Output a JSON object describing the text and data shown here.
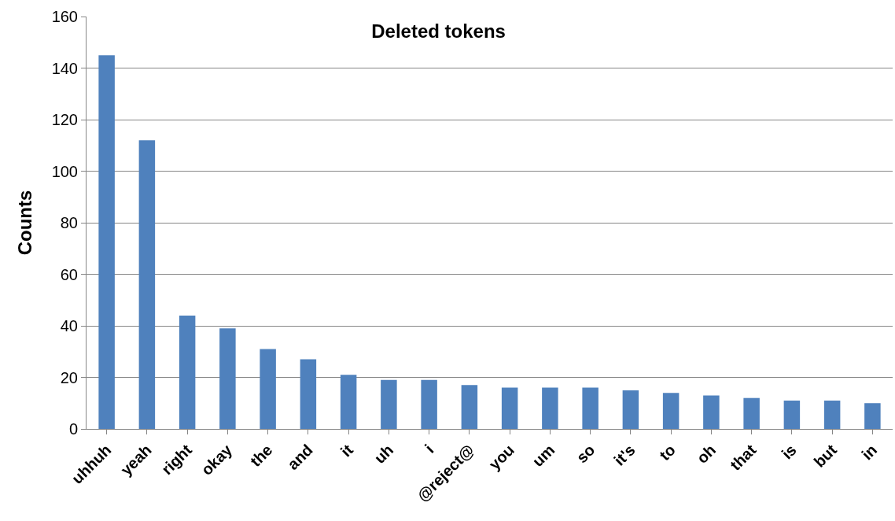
{
  "chart_data": {
    "type": "bar",
    "title": "Deleted tokens",
    "ylabel": "Counts",
    "categories": [
      "uhhuh",
      "yeah",
      "right",
      "okay",
      "the",
      "and",
      "it",
      "uh",
      "i",
      "@reject@",
      "you",
      "um",
      "so",
      "it's",
      "to",
      "oh",
      "that",
      "is",
      "but",
      "in"
    ],
    "values": [
      145,
      112,
      44,
      39,
      31,
      27,
      21,
      19,
      19,
      17,
      16,
      16,
      16,
      15,
      14,
      13,
      12,
      11,
      11,
      10
    ],
    "color": "#4f81bd",
    "ylim": [
      0,
      160
    ],
    "yticks": [
      0,
      20,
      40,
      60,
      80,
      100,
      120,
      140,
      160
    ],
    "grid": "y",
    "legend": false
  }
}
